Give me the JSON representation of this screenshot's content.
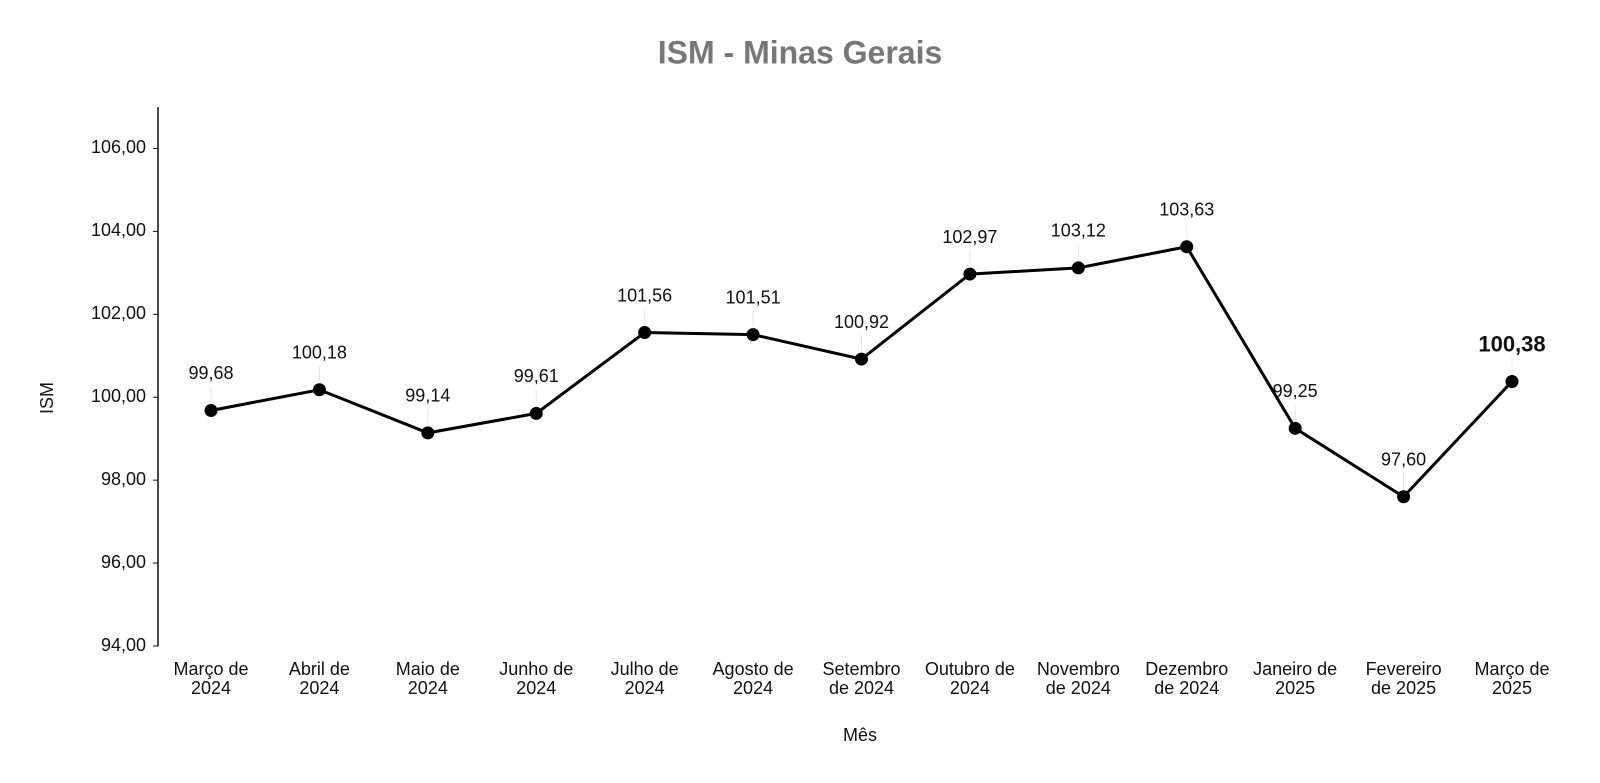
{
  "chart_data": {
    "type": "line",
    "title": "ISM - Minas Gerais",
    "x_label": "Mês",
    "y_label": "ISM",
    "categories": [
      "Março de 2024",
      "Abril de 2024",
      "Maio de 2024",
      "Junho de 2024",
      "Julho de 2024",
      "Agosto de 2024",
      "Setembro de 2024",
      "Outubro de 2024",
      "Novembro de 2024",
      "Dezembro de 2024",
      "Janeiro de 2025",
      "Fevereiro de 2025",
      "Março de 2025"
    ],
    "series": [
      {
        "name": "ISM",
        "color": "#000000",
        "values": [
          99.68,
          100.18,
          99.14,
          99.61,
          101.56,
          101.51,
          100.92,
          102.97,
          103.12,
          103.63,
          99.25,
          97.6,
          100.38
        ],
        "value_labels": [
          "99,68",
          "100,18",
          "99,14",
          "99,61",
          "101,56",
          "101,51",
          "100,92",
          "102,97",
          "103,12",
          "103,63",
          "99,25",
          "97,60",
          "100,38"
        ]
      }
    ],
    "ylim": [
      94,
      107
    ],
    "yticks": [
      {
        "value": 94,
        "label": "94,00"
      },
      {
        "value": 96,
        "label": "96,00"
      },
      {
        "value": 98,
        "label": "98,00"
      },
      {
        "value": 100,
        "label": "100,00"
      },
      {
        "value": 102,
        "label": "102,00"
      },
      {
        "value": 104,
        "label": "104,00"
      },
      {
        "value": 106,
        "label": "106,00"
      }
    ],
    "grid": false
  }
}
